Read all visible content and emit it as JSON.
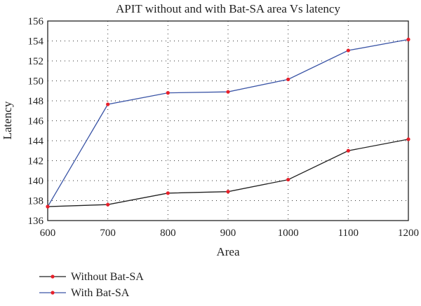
{
  "chart_data": {
    "type": "line",
    "title": "APIT without and with Bat-SA area Vs latency",
    "xlabel": "Area",
    "ylabel": "Latency",
    "x": [
      600,
      700,
      800,
      900,
      1000,
      1100,
      1200
    ],
    "xlim": [
      600,
      1200
    ],
    "ylim": [
      136,
      156
    ],
    "xticks": [
      600,
      700,
      800,
      900,
      1000,
      1100,
      1200
    ],
    "yticks": [
      136,
      138,
      140,
      142,
      144,
      146,
      148,
      150,
      152,
      154,
      156
    ],
    "grid": true,
    "legend_position": "bottom-left",
    "series": [
      {
        "name": "Without Bat-SA",
        "color": "#222222",
        "marker_color": "#e8202a",
        "values": [
          137.4,
          137.6,
          138.75,
          138.9,
          140.1,
          143.0,
          144.15
        ]
      },
      {
        "name": "With Bat-SA",
        "color": "#3b55a6",
        "marker_color": "#e8202a",
        "values": [
          137.4,
          147.65,
          148.8,
          148.9,
          150.15,
          153.05,
          154.15
        ]
      }
    ]
  }
}
